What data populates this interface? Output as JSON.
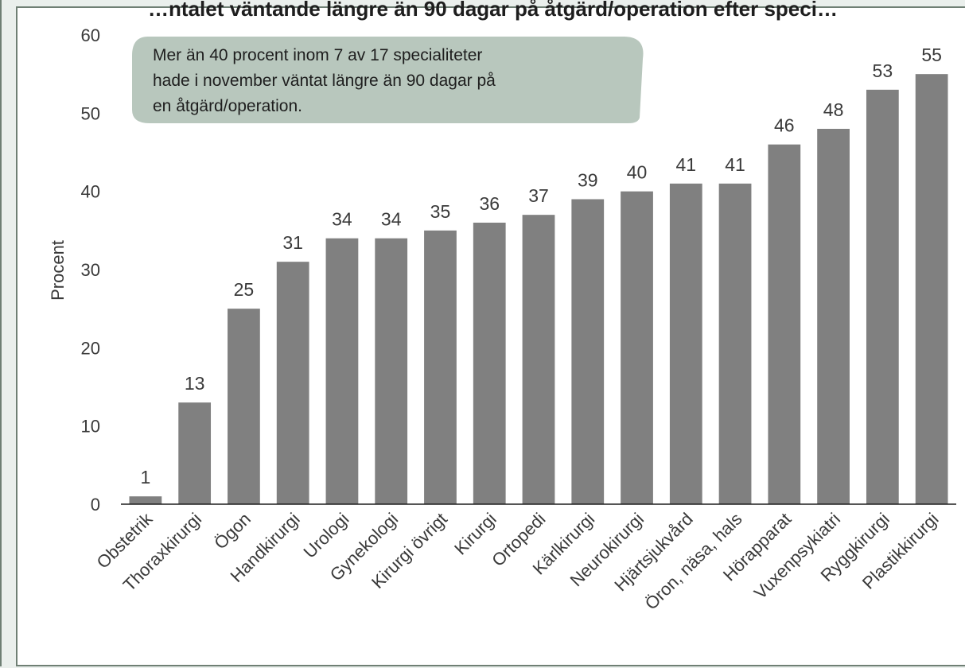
{
  "chart_data": {
    "type": "bar",
    "title": "…ntalet väntande längre än 90 dagar på åtgärd/operation efter speci…",
    "ylabel": "Procent",
    "ylim": [
      0,
      60
    ],
    "yticks": [
      0,
      10,
      20,
      30,
      40,
      50,
      60
    ],
    "categories": [
      "Obstetrik",
      "Thoraxkirurgi",
      "Ögon",
      "Handkirurgi",
      "Urologi",
      "Gynekologi",
      "Kirurgi övrigt",
      "Kirurgi",
      "Ortopedi",
      "Kärlkirurgi",
      "Neurokirurgi",
      "Hjärtsjukvård",
      "Öron, näsa, hals",
      "Hörapparat",
      "Vuxenpsykiatri",
      "Ryggkirurgi",
      "Plastikkirurgi"
    ],
    "values": [
      1,
      13,
      25,
      31,
      34,
      34,
      35,
      36,
      37,
      39,
      40,
      41,
      41,
      46,
      48,
      53,
      55
    ],
    "value_labels": [
      "1",
      "13",
      "25",
      "31",
      "34",
      "34",
      "35",
      "36",
      "37",
      "39",
      "40",
      "41",
      "41",
      "46",
      "48",
      "53",
      "55"
    ],
    "bar_color": "#808080",
    "grid": false,
    "annotation": {
      "lines": [
        "Mer än 40 procent inom 7 av 17 specialiteter",
        "hade i november väntat längre än 90 dagar på",
        "en åtgärd/operation."
      ],
      "background": "#b8c7bd"
    }
  }
}
